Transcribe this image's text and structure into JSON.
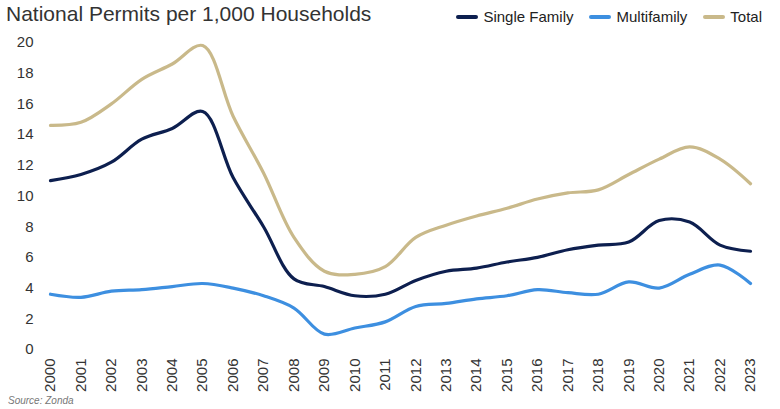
{
  "chart_data": {
    "type": "line",
    "title": "National Permits per 1,000 Households",
    "source": "Source: Zonda",
    "x": [
      2000,
      2001,
      2002,
      2003,
      2004,
      2005,
      2006,
      2007,
      2008,
      2009,
      2010,
      2011,
      2012,
      2013,
      2014,
      2015,
      2016,
      2017,
      2018,
      2019,
      2020,
      2021,
      2022,
      2023
    ],
    "series": [
      {
        "name": "Single Family",
        "color": "#0d1f4f",
        "values": [
          11.0,
          11.4,
          12.2,
          13.7,
          14.4,
          15.5,
          11.2,
          8.0,
          4.6,
          4.1,
          3.5,
          3.6,
          4.5,
          5.1,
          5.3,
          5.7,
          6.0,
          6.5,
          6.8,
          7.0,
          8.4,
          8.3,
          6.8,
          6.4
        ]
      },
      {
        "name": "Multifamily",
        "color": "#3d8fe0",
        "values": [
          3.6,
          3.4,
          3.8,
          3.9,
          4.1,
          4.3,
          4.0,
          3.5,
          2.7,
          1.0,
          1.4,
          1.8,
          2.8,
          3.0,
          3.3,
          3.5,
          3.9,
          3.7,
          3.6,
          4.4,
          4.0,
          4.9,
          5.5,
          4.3
        ]
      },
      {
        "name": "Total",
        "color": "#c9b98a",
        "values": [
          14.6,
          14.8,
          16.0,
          17.6,
          18.6,
          19.8,
          15.2,
          11.5,
          7.3,
          5.1,
          4.9,
          5.4,
          7.3,
          8.1,
          8.7,
          9.2,
          9.8,
          10.2,
          10.4,
          11.4,
          12.4,
          13.2,
          12.4,
          10.8
        ]
      }
    ],
    "xlim": [
      2000,
      2023
    ],
    "xticks": [
      2000,
      2001,
      2002,
      2003,
      2004,
      2005,
      2006,
      2007,
      2008,
      2009,
      2010,
      2011,
      2012,
      2013,
      2014,
      2015,
      2016,
      2017,
      2018,
      2019,
      2020,
      2021,
      2022,
      2023
    ],
    "ylim": [
      0,
      20
    ],
    "yticks": [
      0,
      2,
      4,
      6,
      8,
      10,
      12,
      14,
      16,
      18,
      20
    ],
    "grid": false,
    "legend": "top-right"
  }
}
